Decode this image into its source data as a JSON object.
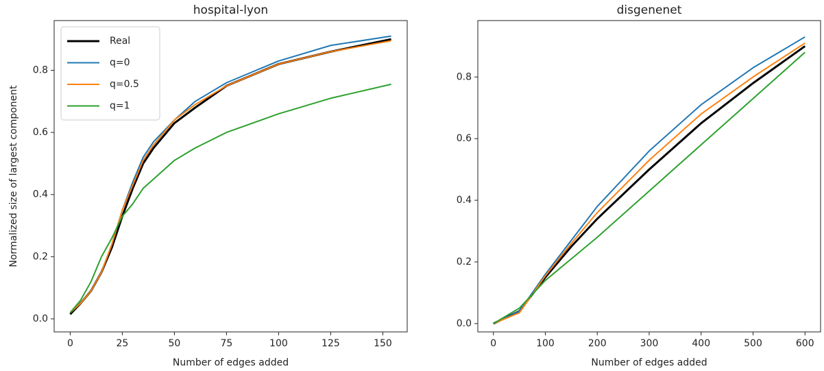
{
  "chart_data": [
    {
      "type": "line",
      "title": "hospital-lyon",
      "xlabel": "Number of edges added",
      "ylabel": "Normalized size of largest component",
      "x": [
        0,
        5,
        10,
        15,
        20,
        25,
        30,
        35,
        40,
        50,
        60,
        75,
        100,
        125,
        154
      ],
      "series": [
        {
          "name": "Real",
          "color": "#000000",
          "linewidth": 3,
          "values": [
            0.015,
            0.05,
            0.09,
            0.15,
            0.23,
            0.33,
            0.42,
            0.5,
            0.55,
            0.63,
            0.68,
            0.75,
            0.82,
            0.86,
            0.9
          ]
        },
        {
          "name": "q=0",
          "color": "#1f77b4",
          "linewidth": 2,
          "values": [
            0.02,
            0.05,
            0.09,
            0.15,
            0.24,
            0.35,
            0.44,
            0.52,
            0.57,
            0.64,
            0.7,
            0.76,
            0.83,
            0.88,
            0.91
          ]
        },
        {
          "name": "q=0.5",
          "color": "#ff7f0e",
          "linewidth": 2,
          "values": [
            0.02,
            0.05,
            0.09,
            0.15,
            0.24,
            0.35,
            0.43,
            0.51,
            0.56,
            0.64,
            0.69,
            0.75,
            0.82,
            0.86,
            0.895
          ]
        },
        {
          "name": "q=1",
          "color": "#2ca02c",
          "linewidth": 2,
          "values": [
            0.02,
            0.06,
            0.12,
            0.2,
            0.26,
            0.33,
            0.37,
            0.42,
            0.45,
            0.51,
            0.55,
            0.6,
            0.66,
            0.71,
            0.755
          ]
        }
      ],
      "xlim": [
        -7.7,
        161.7
      ],
      "xticks": [
        0,
        25,
        50,
        75,
        100,
        125,
        150
      ],
      "ylim": [
        -0.042,
        0.96
      ],
      "yticks": [
        {
          "value": 0,
          "label": "0.0"
        },
        0.2,
        0.4,
        0.6,
        0.8
      ],
      "legend": "upper left"
    },
    {
      "type": "line",
      "title": "disgenenet",
      "xlabel": "Number of edges added",
      "x": [
        0,
        50,
        100,
        150,
        200,
        300,
        400,
        500,
        600
      ],
      "series": [
        {
          "color": "#000000",
          "linewidth": 3,
          "values": [
            0,
            0.04,
            0.15,
            0.25,
            0.34,
            0.5,
            0.65,
            0.78,
            0.9
          ]
        },
        {
          "color": "#1f77b4",
          "linewidth": 2,
          "values": [
            0,
            0.04,
            0.16,
            0.27,
            0.38,
            0.56,
            0.71,
            0.83,
            0.93
          ]
        },
        {
          "color": "#ff7f0e",
          "linewidth": 2,
          "values": [
            0,
            0.035,
            0.155,
            0.26,
            0.36,
            0.53,
            0.68,
            0.8,
            0.91
          ]
        },
        {
          "color": "#2ca02c",
          "linewidth": 2,
          "values": [
            0,
            0.05,
            0.14,
            0.21,
            0.28,
            0.43,
            0.58,
            0.73,
            0.88
          ]
        }
      ],
      "xlim": [
        -30,
        630
      ],
      "xticks": [
        0,
        100,
        200,
        300,
        400,
        500,
        600
      ],
      "ylim": [
        -0.027,
        0.983
      ],
      "yticks": [
        {
          "value": 0,
          "label": "0.0"
        },
        0.2,
        0.4,
        0.6,
        0.8
      ]
    }
  ]
}
